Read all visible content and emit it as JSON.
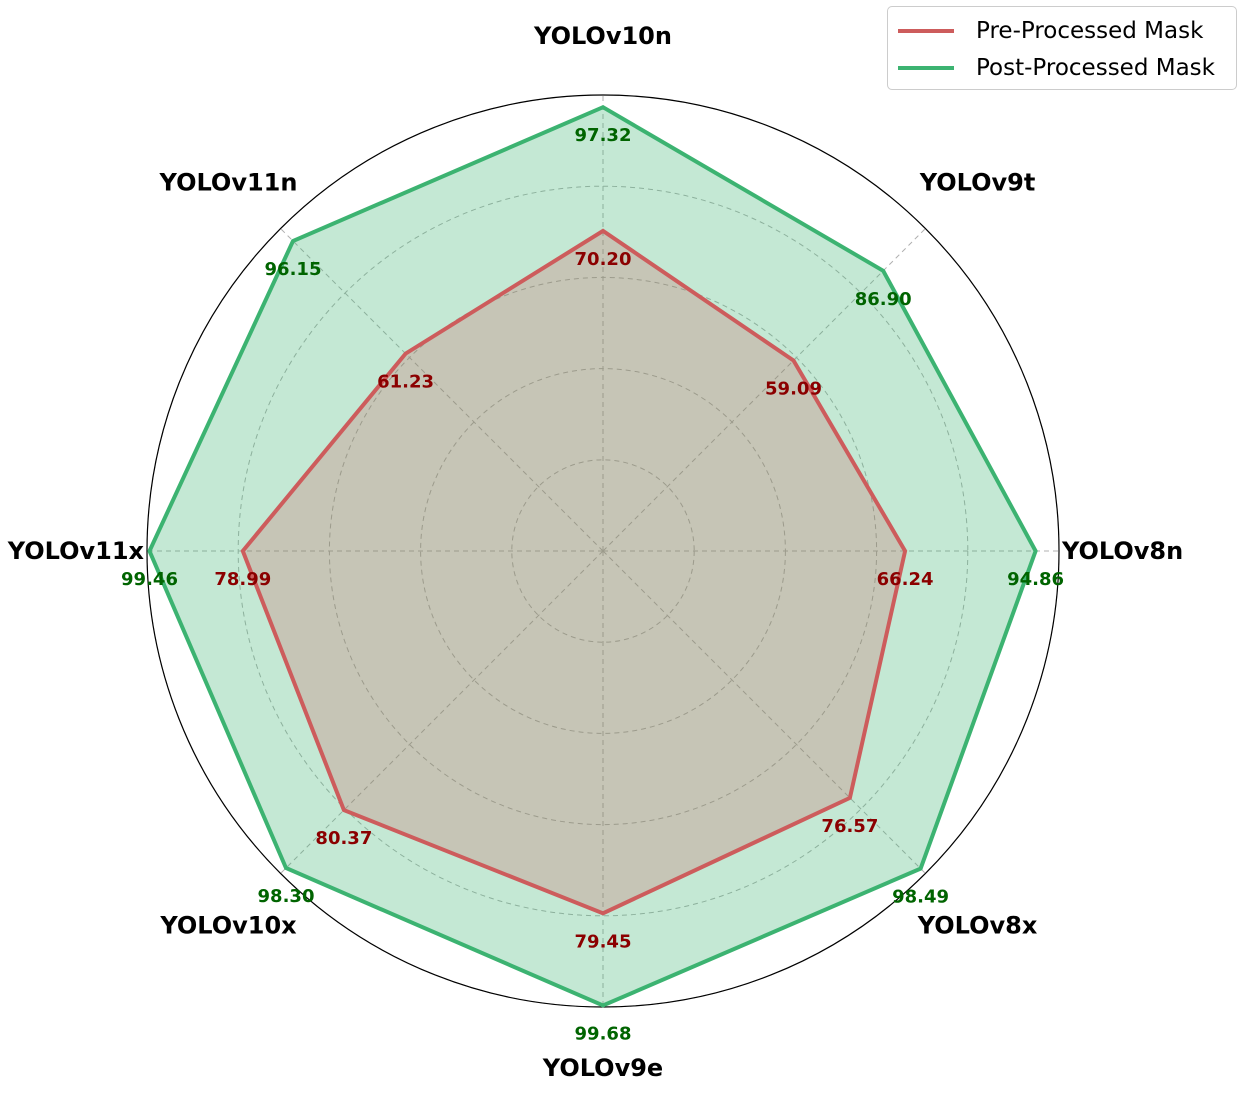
{
  "colors": {
    "pre": "#cd5c5c",
    "post": "#3cb371",
    "pre_label": "#8b0000",
    "post_label": "#006400",
    "grid": "#b0b0b0"
  },
  "chart_data": {
    "type": "radar",
    "categories": [
      "YOLOv8n",
      "YOLOv9t",
      "YOLOv10n",
      "YOLOv11n",
      "YOLOv11x",
      "YOLOv10x",
      "YOLOv9e",
      "YOLOv8x"
    ],
    "rlim": [
      0,
      100
    ],
    "rticks": [
      20,
      40,
      60,
      80,
      100
    ],
    "grid": true,
    "legend_position": "top-right",
    "series": [
      {
        "name": "Pre-Processed Mask",
        "color": "#cd5c5c",
        "values": [
          66.24,
          59.09,
          70.2,
          61.23,
          78.99,
          80.37,
          79.45,
          76.57
        ]
      },
      {
        "name": "Post-Processed Mask",
        "color": "#3cb371",
        "values": [
          94.86,
          86.9,
          97.32,
          96.15,
          99.46,
          98.3,
          99.68,
          98.49
        ]
      }
    ]
  }
}
